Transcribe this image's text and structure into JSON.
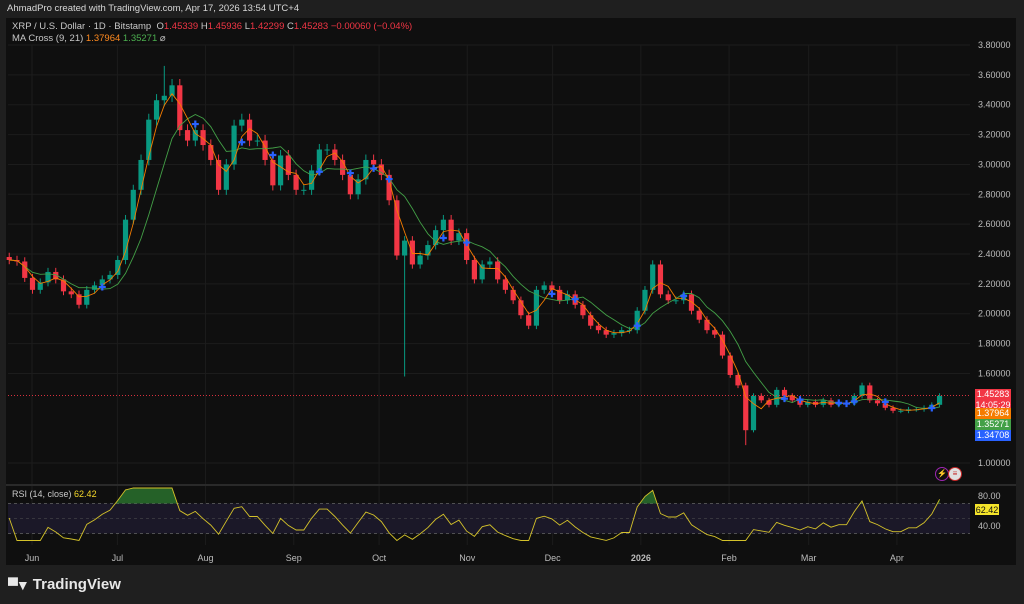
{
  "credit": "AhmadPro created with TradingView.com, Apr 17, 2026 13:54 UTC+4",
  "legend": {
    "symbol": "XRP / U.S. Dollar · 1D · Bitstamp",
    "o_label": "O",
    "o": "1.45339",
    "h_label": "H",
    "h": "1.45936",
    "l_label": "L",
    "l": "1.42299",
    "c_label": "C",
    "c": "1.45283",
    "change": "−0.00060 (−0.04%)",
    "ma_label": "MA Cross (9, 21)",
    "ma_fast": "1.37964",
    "ma_slow": "1.35271",
    "ma_icon": "⌀"
  },
  "price_tags": [
    {
      "value": "1.45283",
      "sub": "14:05:29",
      "color": "#f23645"
    },
    {
      "value": "1.37964",
      "color": "#f57c00"
    },
    {
      "value": "1.35271",
      "color": "#43a047"
    },
    {
      "value": "1.34708",
      "color": "#2962ff"
    }
  ],
  "rsi": {
    "label": "RSI (14, close)",
    "value": "62.42",
    "axis": [
      "80.00",
      "40.00"
    ]
  },
  "icons": {
    "lightning": "lightning-icon",
    "flag": "us-flag-icon"
  },
  "brand": "TradingView",
  "colors": {
    "up": "#089981",
    "down": "#f23645",
    "ma_fast": "#f57c00",
    "ma_slow": "#43a047",
    "cross": "#2962ff",
    "rsi": "#d4c22a",
    "last_price": "#f23645"
  },
  "chart_data": {
    "type": "candlestick",
    "title": "XRP / U.S. Dollar · 1D · Bitstamp",
    "ylim": [
      0.9,
      3.9
    ],
    "y_ticks": [
      "3.80000",
      "3.60000",
      "3.40000",
      "3.20000",
      "3.00000",
      "2.80000",
      "2.60000",
      "2.40000",
      "2.20000",
      "2.00000",
      "1.80000",
      "1.60000",
      "1.00000"
    ],
    "x_ticks": [
      "Jun",
      "Jul",
      "Aug",
      "Sep",
      "Oct",
      "Nov",
      "Dec",
      "2026",
      "Feb",
      "Mar",
      "Apr"
    ],
    "grid": true,
    "last_price": 1.45283,
    "closes": [
      2.36,
      2.35,
      2.24,
      2.16,
      2.21,
      2.28,
      2.23,
      2.15,
      2.13,
      2.06,
      2.16,
      2.19,
      2.23,
      2.26,
      2.36,
      2.63,
      2.83,
      3.03,
      3.3,
      3.43,
      3.46,
      3.53,
      3.23,
      3.16,
      3.23,
      3.13,
      3.03,
      2.83,
      3.0,
      3.26,
      3.3,
      3.16,
      3.16,
      3.03,
      2.86,
      3.06,
      2.93,
      2.83,
      2.83,
      2.96,
      3.1,
      3.1,
      3.03,
      2.93,
      2.8,
      2.9,
      3.03,
      3.0,
      2.93,
      2.76,
      2.39,
      2.49,
      2.33,
      2.39,
      2.46,
      2.56,
      2.63,
      2.49,
      2.54,
      2.36,
      2.23,
      2.33,
      2.35,
      2.23,
      2.16,
      2.09,
      1.99,
      1.92,
      2.16,
      2.19,
      2.16,
      2.09,
      2.13,
      2.06,
      1.99,
      1.92,
      1.89,
      1.86,
      1.87,
      1.89,
      1.89,
      2.02,
      2.16,
      2.33,
      2.13,
      2.09,
      2.09,
      2.13,
      2.02,
      1.96,
      1.89,
      1.86,
      1.72,
      1.59,
      1.52,
      1.22,
      1.45,
      1.42,
      1.39,
      1.49,
      1.45,
      1.42,
      1.39,
      1.41,
      1.39,
      1.42,
      1.39,
      1.4,
      1.4,
      1.45,
      1.52,
      1.42,
      1.4,
      1.37,
      1.35,
      1.35,
      1.36,
      1.36,
      1.37,
      1.39,
      1.45
    ],
    "wick_extremes": [
      {
        "date": "2025-07-18",
        "high": 3.66
      },
      {
        "date": "2025-10-10",
        "low": 1.58
      },
      {
        "date": "2026-02-06",
        "low": 1.12
      }
    ],
    "indicators": [
      "MA 9",
      "MA 21",
      "RSI 14"
    ]
  }
}
